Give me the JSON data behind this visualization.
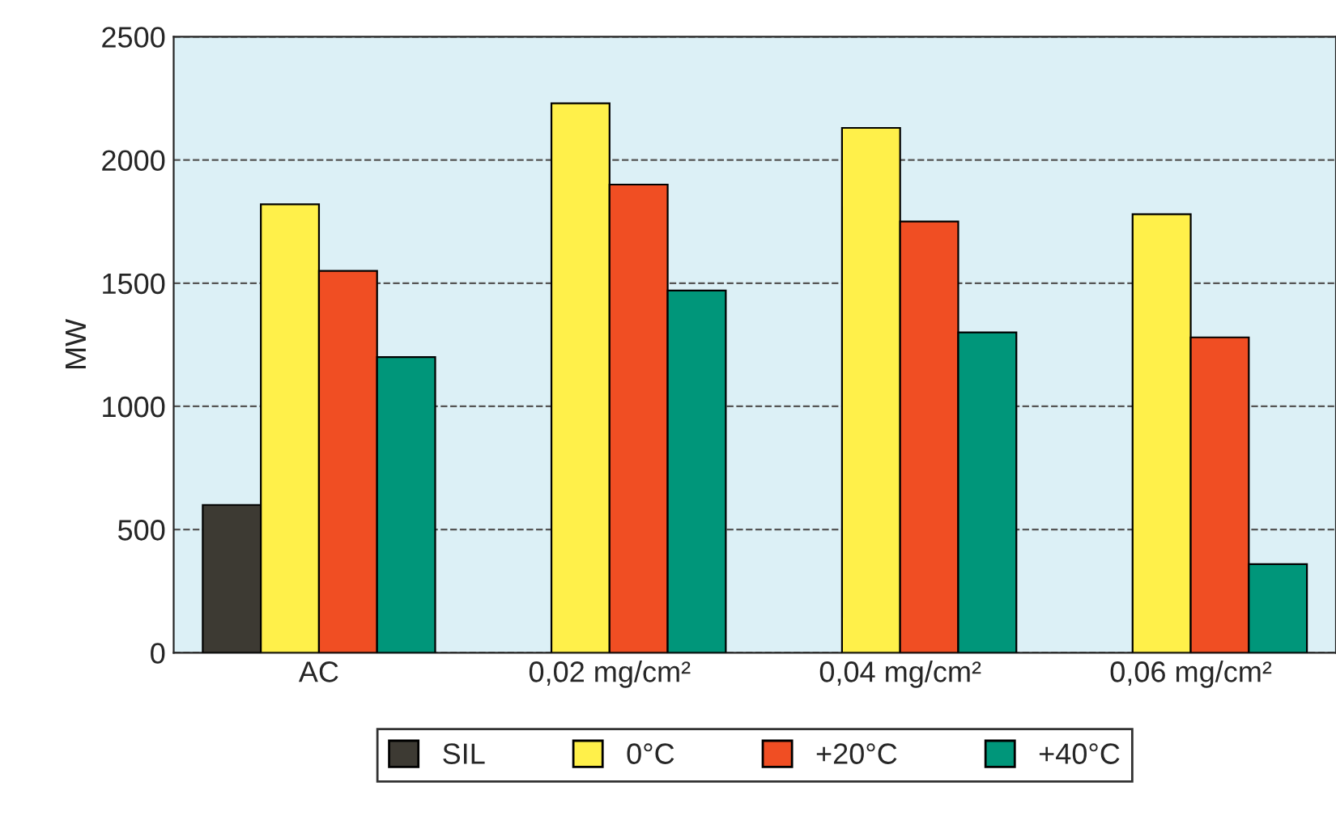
{
  "chart_data": {
    "type": "bar",
    "ylabel": "MW",
    "categories": [
      "AC",
      "0,02 mg/cm²",
      "0,04 mg/cm²",
      "0,06 mg/cm²"
    ],
    "series": [
      {
        "name": "SIL",
        "color": "#3d3a33",
        "values": [
          600,
          null,
          null,
          null
        ]
      },
      {
        "name": "0°C",
        "color": "#fff04a",
        "values": [
          1820,
          2230,
          2130,
          1780
        ]
      },
      {
        "name": "+20°C",
        "color": "#f04e23",
        "values": [
          1550,
          1900,
          1750,
          1280
        ]
      },
      {
        "name": "+40°C",
        "color": "#00967a",
        "values": [
          1200,
          1470,
          1300,
          360
        ]
      }
    ],
    "ylim": [
      0,
      2500
    ],
    "yticks": [
      0,
      500,
      1000,
      1500,
      2000,
      2500
    ],
    "grid": "y",
    "legend": "bottom"
  }
}
